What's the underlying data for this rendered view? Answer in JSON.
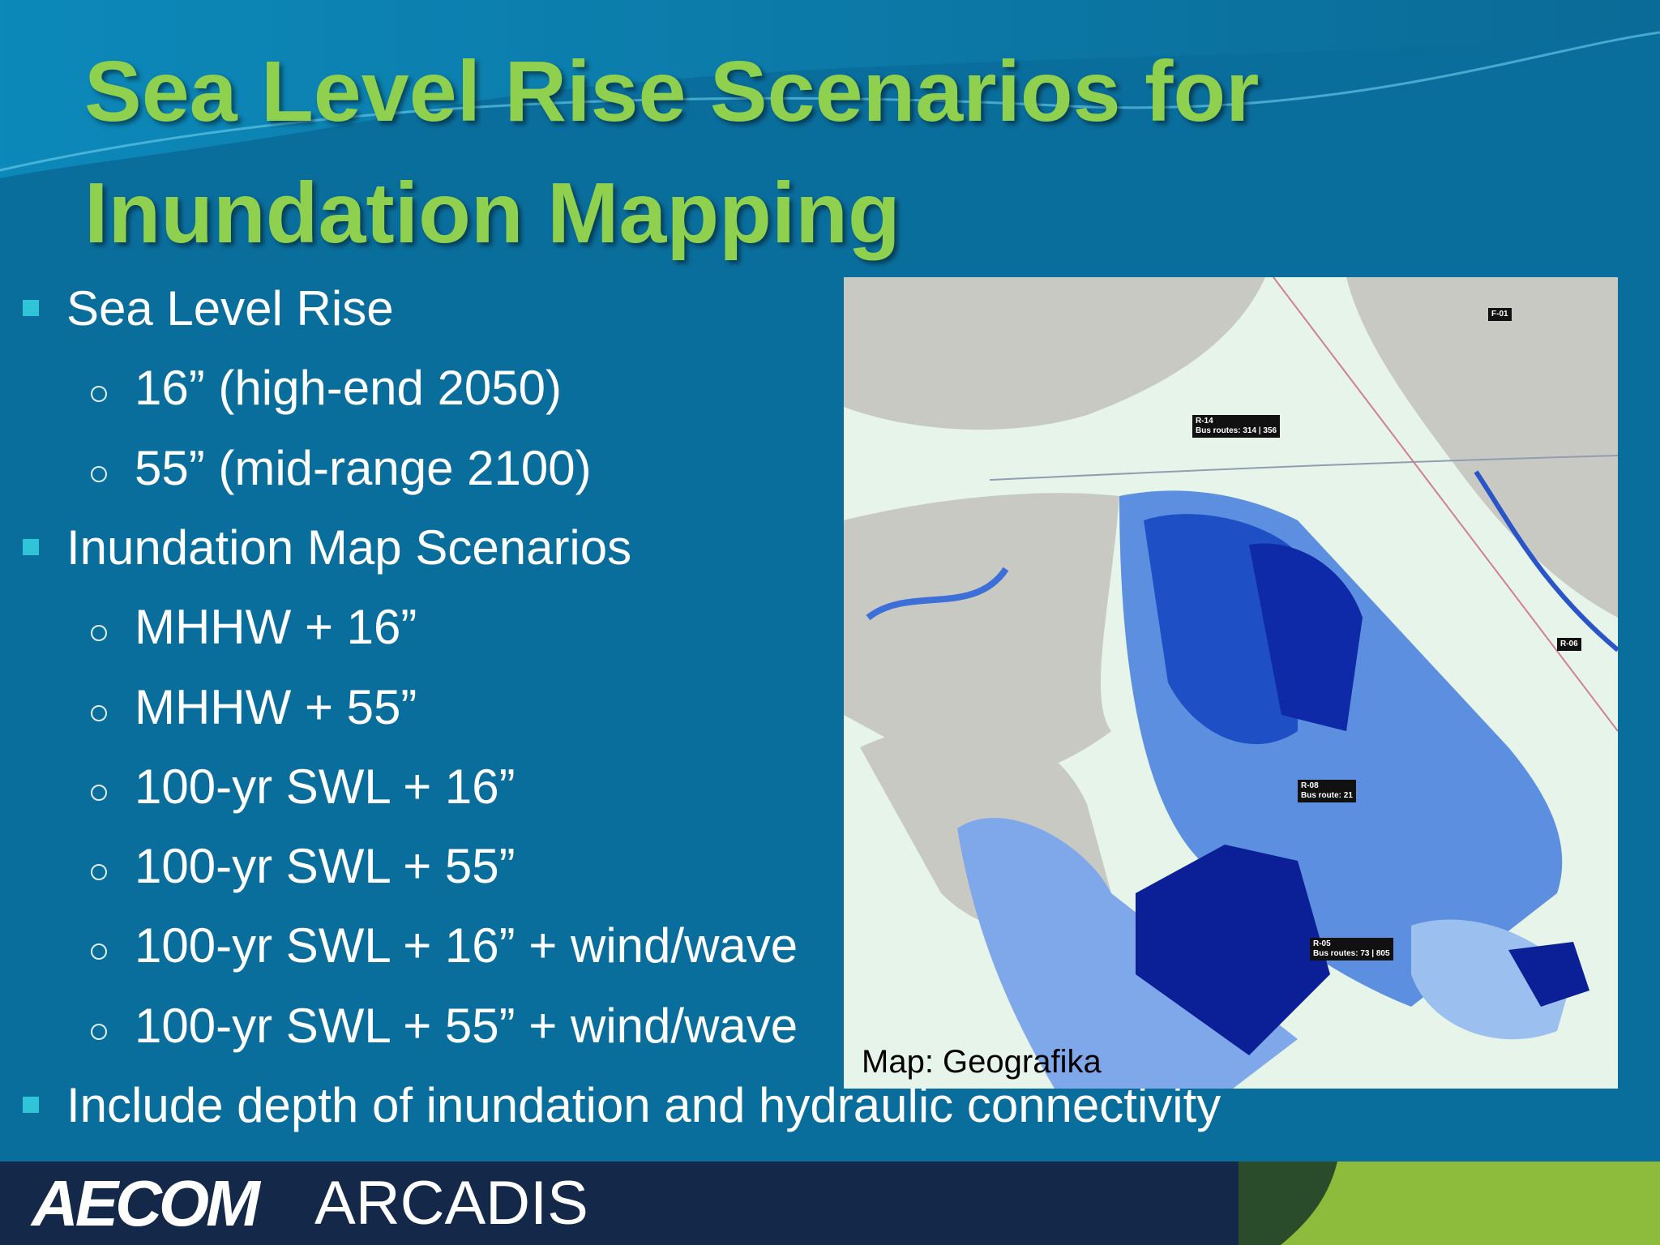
{
  "title": "Sea Level Rise Scenarios for Inundation Mapping",
  "bullets": [
    {
      "text": "Sea Level Rise",
      "items": [
        "16” (high-end 2050)",
        "55” (mid-range 2100)"
      ]
    },
    {
      "text": "Inundation Map Scenarios",
      "items": [
        "MHHW + 16”",
        "MHHW + 55”",
        "100-yr SWL + 16”",
        "100-yr SWL + 55”",
        "100-yr SWL + 16” + wind/wave",
        "100-yr SWL + 55” + wind/wave"
      ]
    },
    {
      "text": "Include depth of inundation and hydraulic connectivity"
    }
  ],
  "map": {
    "caption": "Map: Geografika",
    "labels": [
      {
        "id": "F-01"
      },
      {
        "id": "R-14",
        "detail": "Bus routes: 314 | 356"
      },
      {
        "id": "R-08",
        "detail": "Bus route: 21"
      },
      {
        "id": "R-05",
        "detail": "Bus routes: 73 | 805"
      },
      {
        "id": "R-06"
      }
    ]
  },
  "footer": {
    "logos": [
      "AECOM",
      "ARCADIS"
    ]
  }
}
